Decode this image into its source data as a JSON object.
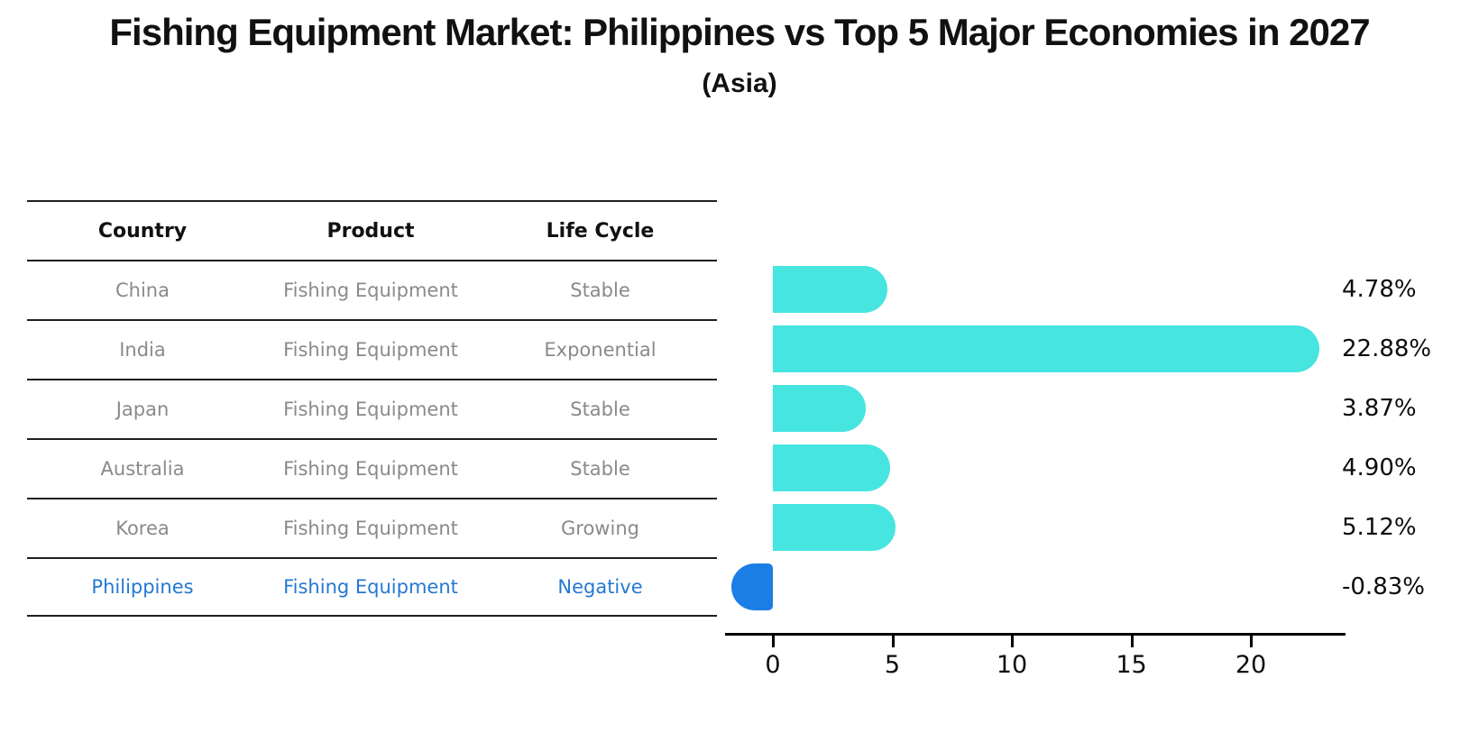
{
  "title": "Fishing Equipment Market: Philippines vs Top 5 Major Economies in 2027",
  "subtitle": "(Asia)",
  "table": {
    "headers": [
      "Country",
      "Product",
      "Life Cycle"
    ],
    "rows": [
      {
        "country": "China",
        "product": "Fishing Equipment",
        "life_cycle": "Stable"
      },
      {
        "country": "India",
        "product": "Fishing Equipment",
        "life_cycle": "Exponential"
      },
      {
        "country": "Japan",
        "product": "Fishing Equipment",
        "life_cycle": "Stable"
      },
      {
        "country": "Australia",
        "product": "Fishing Equipment",
        "life_cycle": "Stable"
      },
      {
        "country": "Korea",
        "product": "Fishing Equipment",
        "life_cycle": "Growing"
      },
      {
        "country": "Philippines",
        "product": "Fishing Equipment",
        "life_cycle": "Negative"
      }
    ],
    "highlight_row": "Philippines"
  },
  "chart_data": {
    "type": "bar",
    "orientation": "horizontal",
    "categories": [
      "China",
      "India",
      "Japan",
      "Australia",
      "Korea",
      "Philippines"
    ],
    "values": [
      4.78,
      22.88,
      3.87,
      4.9,
      5.12,
      -0.83
    ],
    "value_labels": [
      "4.78%",
      "22.88%",
      "3.87%",
      "4.90%",
      "5.12%",
      "-0.83%"
    ],
    "x_ticks": [
      0,
      5,
      10,
      15,
      20
    ],
    "xlim": [
      -2,
      24
    ],
    "grid": false,
    "legend": "none",
    "bar_color": "#46e5e0",
    "highlight_color": "#1b7ee6",
    "highlight_index": 5,
    "highlight_text_color": "#2478d2",
    "title": "Fishing Equipment Market: Philippines vs Top 5 Major Economies in 2027",
    "subtitle": "(Asia)",
    "xlabel": "",
    "ylabel": ""
  }
}
